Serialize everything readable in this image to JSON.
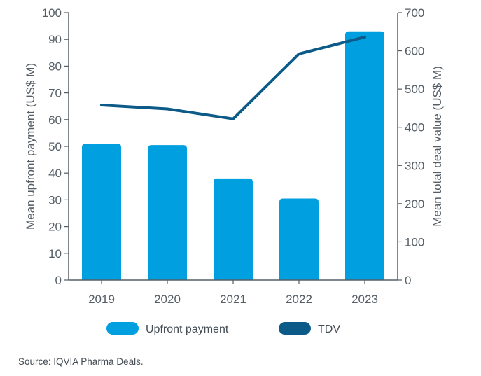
{
  "chart_data": {
    "type": "bar",
    "categories": [
      "2019",
      "2020",
      "2021",
      "2022",
      "2023"
    ],
    "series": [
      {
        "name": "Upfront payment",
        "type": "bar",
        "axis": "left",
        "color": "#009fdf",
        "values": [
          51,
          50.5,
          38,
          30.5,
          93
        ]
      },
      {
        "name": "TDV",
        "type": "line",
        "axis": "right",
        "color": "#0b5a88",
        "values": [
          458,
          448,
          422,
          592,
          636
        ]
      }
    ],
    "ylabel": "Mean upfront payment (US$ M)",
    "y2label": "Mean total deal value (US$ M)",
    "ylim": [
      0,
      100
    ],
    "y2lim": [
      0,
      700
    ],
    "yticks": [
      "0",
      "10",
      "20",
      "30",
      "40",
      "50",
      "60",
      "70",
      "80",
      "90",
      "100"
    ],
    "y2ticks": [
      "0",
      "100",
      "200",
      "300",
      "400",
      "500",
      "600",
      "700"
    ],
    "legend_position": "bottom",
    "grid": false,
    "axis_color": "#555e66"
  },
  "source_text": "Source: IQVIA Pharma Deals."
}
